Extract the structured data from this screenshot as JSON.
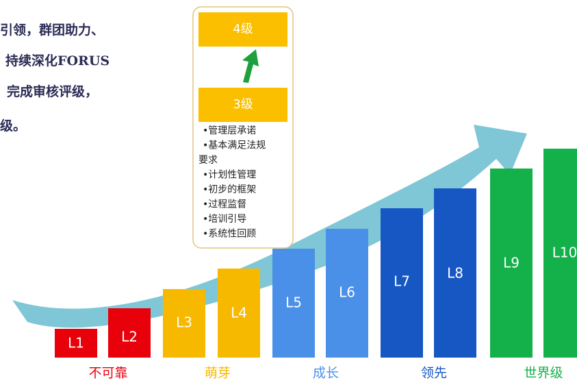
{
  "left_text": [
    "引领，群团助力、",
    "持续深化FORUS",
    "完成审核评级，",
    "级。"
  ],
  "box": {
    "top_label": "4级",
    "bottom_label": "3级",
    "items": [
      "•管理层承诺",
      "•基本满足法规",
      "要求",
      "•计划性管理",
      "•初步的框架",
      "•过程监督",
      "•培训引导",
      "•系统性回顾"
    ]
  },
  "levels": [
    "L1",
    "L2",
    "L3",
    "L4",
    "L5",
    "L6",
    "L7",
    "L8",
    "L9",
    "L10"
  ],
  "stages": [
    "不可靠",
    "萌芽",
    "成长",
    "领先",
    "世界级"
  ]
}
